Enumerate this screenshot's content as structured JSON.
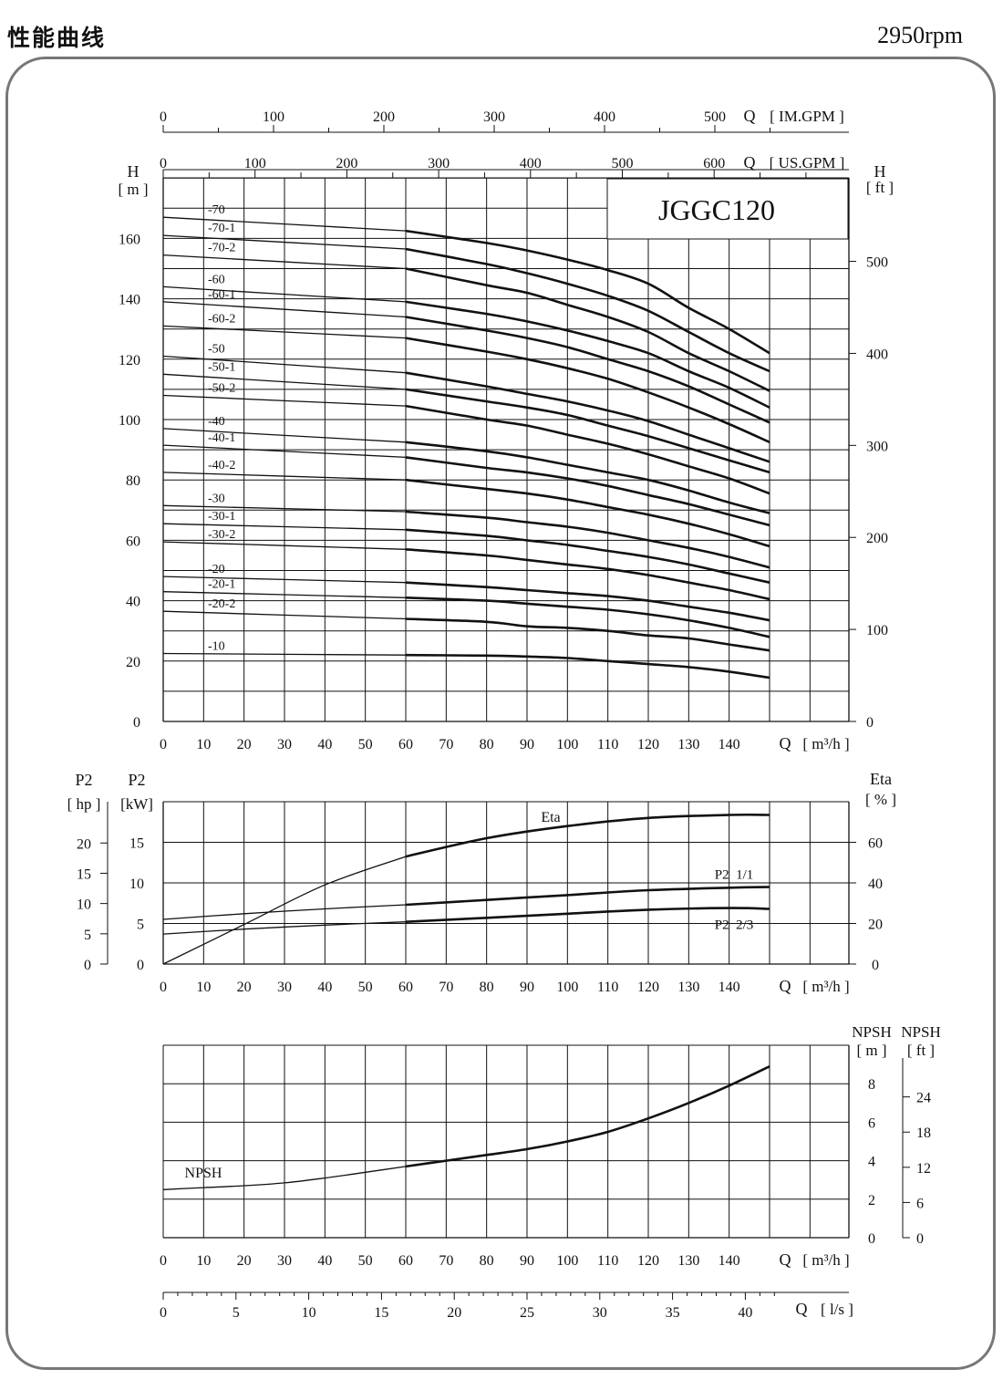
{
  "header": {
    "title": "性能曲线",
    "speed": "2950rpm"
  },
  "model": "JGGC120",
  "chart_data": [
    {
      "type": "line",
      "id": "head",
      "x_axis": {
        "label": "Q",
        "unit": "[ m³/h ]",
        "range": [
          0,
          150
        ],
        "ticks": [
          0,
          10,
          20,
          30,
          40,
          50,
          60,
          70,
          80,
          90,
          100,
          110,
          120,
          130,
          140
        ]
      },
      "y_axis": {
        "label": "H",
        "unit": "[ m ]",
        "range": [
          0,
          170
        ],
        "ticks": [
          0,
          20,
          40,
          60,
          80,
          100,
          120,
          140,
          160
        ]
      },
      "y2_axis": {
        "label": "H",
        "unit": "[ ft ]",
        "ticks": [
          0,
          100,
          200,
          300,
          400,
          500
        ]
      },
      "top_axes": [
        {
          "label": "Q",
          "unit": "[ IM.GPM ]",
          "ticks": [
            0,
            100,
            200,
            300,
            400,
            500
          ]
        },
        {
          "label": "Q",
          "unit": "[ US.GPM ]",
          "ticks": [
            0,
            100,
            200,
            300,
            400,
            500,
            600
          ]
        }
      ],
      "x": [
        0,
        60,
        80,
        90,
        100,
        110,
        120,
        130,
        140,
        150
      ],
      "series": [
        {
          "name": "-70",
          "values": [
            167,
            162.5,
            158.5,
            156,
            153,
            149.5,
            145,
            137,
            130,
            122
          ]
        },
        {
          "name": "-70-1",
          "values": [
            161,
            156.5,
            151.5,
            148.5,
            145,
            141,
            136,
            129,
            122,
            116
          ]
        },
        {
          "name": "-70-2",
          "values": [
            154.5,
            150,
            144.5,
            142,
            138,
            134,
            129,
            122,
            116,
            109.5
          ]
        },
        {
          "name": "-60",
          "values": [
            144,
            139,
            135,
            132.5,
            129.5,
            126,
            122,
            116,
            110.5,
            104
          ]
        },
        {
          "name": "-60-1",
          "values": [
            139,
            134,
            129.5,
            127,
            124,
            120,
            116,
            111,
            105,
            99
          ]
        },
        {
          "name": "-60-2",
          "values": [
            131,
            127,
            122.5,
            120,
            117,
            113.5,
            109,
            104,
            98.5,
            92.5
          ]
        },
        {
          "name": "-50",
          "values": [
            121,
            115.5,
            111,
            108.5,
            106,
            103,
            99.5,
            95,
            90.5,
            86
          ]
        },
        {
          "name": "-50-1",
          "values": [
            115,
            110,
            106,
            104,
            101.5,
            98,
            94.5,
            90.5,
            86.5,
            82.5
          ]
        },
        {
          "name": "-50-2",
          "values": [
            108,
            104.5,
            100,
            98,
            95,
            92,
            88.5,
            84.5,
            80.5,
            75.5
          ]
        },
        {
          "name": "-40",
          "values": [
            97,
            92.5,
            89.5,
            87.5,
            85,
            82.5,
            80,
            76.5,
            72.5,
            69
          ]
        },
        {
          "name": "-40-1",
          "values": [
            91.5,
            87.5,
            84,
            82.5,
            80.5,
            78,
            75,
            72,
            68.5,
            65
          ]
        },
        {
          "name": "-40-2",
          "values": [
            82.5,
            80,
            77,
            75.5,
            73.5,
            71,
            68.5,
            65.5,
            62,
            58
          ]
        },
        {
          "name": "-30",
          "values": [
            71.5,
            69.5,
            67.5,
            66,
            64.5,
            62.5,
            60,
            57.5,
            54.5,
            51
          ]
        },
        {
          "name": "-30-1",
          "values": [
            65.5,
            63.5,
            61.5,
            60,
            58.5,
            56.5,
            54.5,
            52,
            49,
            46
          ]
        },
        {
          "name": "-30-2",
          "values": [
            59.5,
            57,
            55,
            53.5,
            52,
            50.5,
            48.5,
            46,
            43.5,
            40.5
          ]
        },
        {
          "name": "-20",
          "values": [
            48,
            46,
            44.5,
            43.5,
            42.5,
            41.5,
            40,
            38,
            36,
            33.5
          ]
        },
        {
          "name": "-20-1",
          "values": [
            43,
            41,
            40,
            39,
            38,
            37,
            35.5,
            33.5,
            31,
            28
          ]
        },
        {
          "name": "-20-2",
          "values": [
            36.5,
            34,
            33,
            31.5,
            31,
            30,
            28.5,
            27.5,
            25.5,
            23.5
          ]
        },
        {
          "name": "-10",
          "values": [
            22.5,
            22,
            21.8,
            21.5,
            21,
            20,
            19,
            18,
            16.5,
            14.5
          ]
        }
      ]
    },
    {
      "type": "line",
      "id": "power",
      "x_axis": {
        "label": "Q",
        "unit": "[ m³/h ]",
        "range": [
          0,
          150
        ],
        "ticks": [
          0,
          10,
          20,
          30,
          40,
          50,
          60,
          70,
          80,
          90,
          100,
          110,
          120,
          130,
          140
        ]
      },
      "y_axis": {
        "label": "P2",
        "unit": "[kW]",
        "range": [
          0,
          20
        ],
        "ticks": [
          0,
          5,
          10,
          15
        ]
      },
      "y_axis_hp": {
        "label": "P2",
        "unit": "[ hp ]",
        "ticks": [
          0,
          5,
          10,
          15,
          20
        ]
      },
      "y2_axis": {
        "label": "Eta",
        "unit": "[ % ]",
        "range": [
          0,
          80
        ],
        "ticks": [
          0,
          20,
          40,
          60
        ]
      },
      "x": [
        0,
        20,
        40,
        60,
        80,
        100,
        120,
        140,
        150
      ],
      "series": [
        {
          "name": "P2  1/1",
          "axis": "kW",
          "values": [
            5.5,
            6.2,
            6.8,
            7.3,
            7.9,
            8.5,
            9.1,
            9.4,
            9.5
          ]
        },
        {
          "name": "P2  2/3",
          "axis": "kW",
          "values": [
            3.7,
            4.3,
            4.8,
            5.2,
            5.7,
            6.2,
            6.7,
            6.9,
            6.8
          ]
        }
      ],
      "eta": {
        "name": "Eta",
        "axis": "%",
        "values": [
          0,
          19.5,
          39,
          53,
          62,
          68,
          72,
          73.5,
          73.5
        ]
      }
    },
    {
      "type": "line",
      "id": "npsh",
      "x_axis": {
        "label": "Q",
        "unit": "[ m³/h ]",
        "range": [
          0,
          150
        ],
        "ticks": [
          0,
          10,
          20,
          30,
          40,
          50,
          60,
          70,
          80,
          90,
          100,
          110,
          120,
          130,
          140
        ]
      },
      "y_axis": {
        "label": "NPSH",
        "unit": "[ m ]",
        "range": [
          0,
          10
        ],
        "ticks": [
          0,
          2,
          4,
          6,
          8
        ]
      },
      "y2_axis": {
        "label": "NPSH",
        "unit": "[ ft ]",
        "ticks": [
          0,
          6,
          12,
          18,
          24
        ]
      },
      "lps_axis": {
        "label": "Q",
        "unit": "[ l/s ]",
        "ticks": [
          0,
          5,
          10,
          15,
          20,
          25,
          30,
          35,
          40
        ]
      },
      "x": [
        0,
        10,
        20,
        30,
        40,
        50,
        60,
        70,
        80,
        90,
        100,
        110,
        120,
        130,
        140,
        150
      ],
      "series": [
        {
          "name": "NPSH",
          "values": [
            2.5,
            2.6,
            2.7,
            2.85,
            3.1,
            3.4,
            3.7,
            4.0,
            4.3,
            4.6,
            5.0,
            5.5,
            6.2,
            7.0,
            7.9,
            8.9
          ]
        }
      ]
    }
  ]
}
